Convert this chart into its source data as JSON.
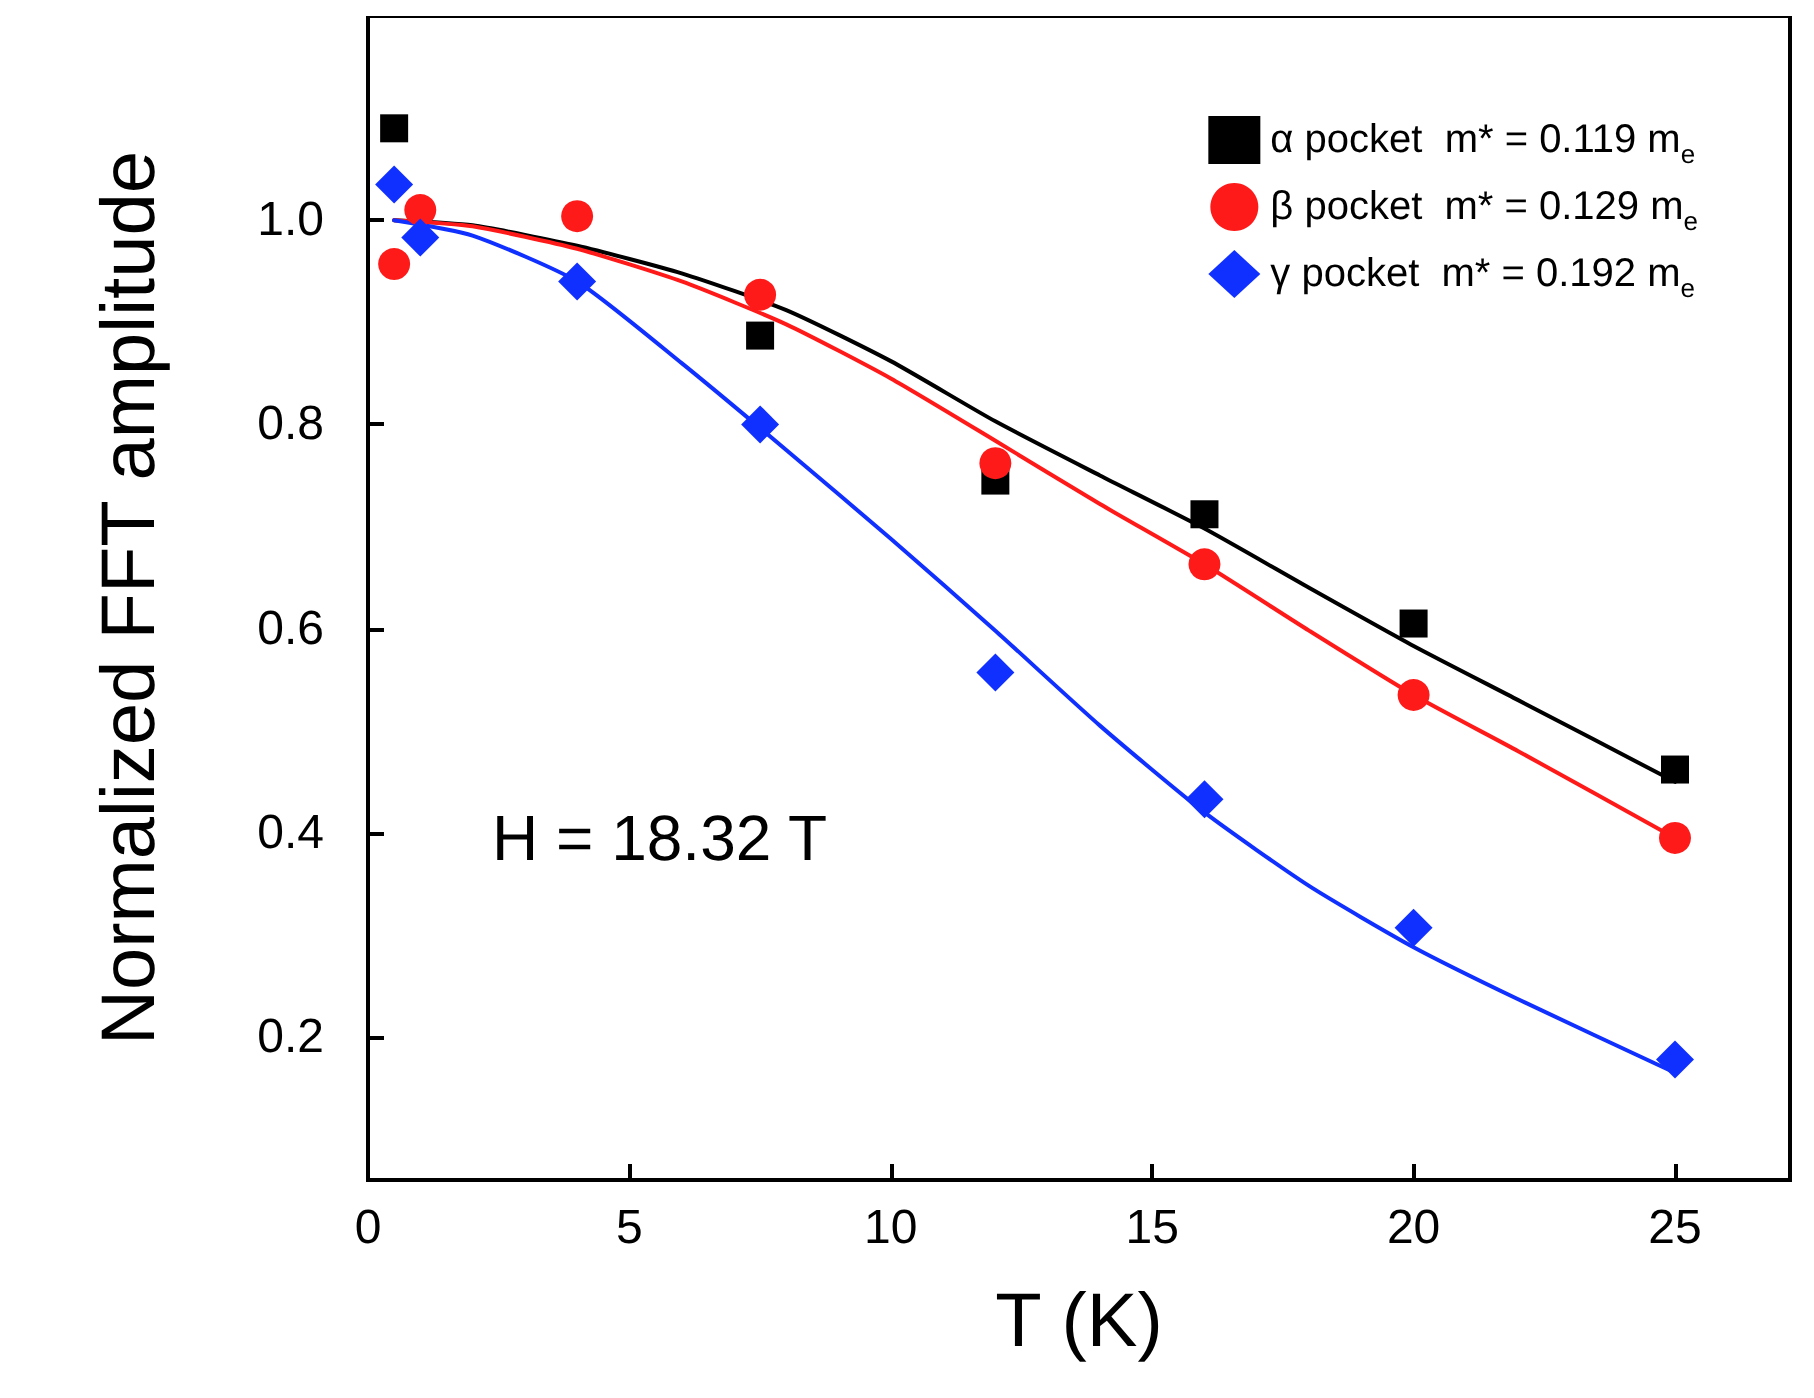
{
  "chart_data": {
    "type": "scatter",
    "xlabel": "T (K)",
    "ylabel": "Normalized FFT amplitude",
    "xlim": [
      0,
      27.2
    ],
    "xticks": [
      0,
      5,
      10,
      15,
      20,
      25
    ],
    "ylim": [
      0.06,
      1.2
    ],
    "yticks": [
      0.2,
      0.4,
      0.6,
      0.8,
      {
        "value": 1,
        "label": "1.0"
      }
    ],
    "x": [
      0.5,
      1,
      4,
      7.5,
      12,
      16,
      20,
      25
    ],
    "series": [
      {
        "name": "α pocket  m* = 0.119 m$_{e}$",
        "color": "#000000",
        "marker": "square",
        "values": [
          1.09,
          null,
          null,
          0.887,
          0.745,
          0.712,
          0.605,
          0.462
        ]
      },
      {
        "name": "β pocket  m* = 0.129 m$_{e}$",
        "color": "#ff1a1a",
        "marker": "circle",
        "values": [
          0.957,
          1.01,
          1.004,
          0.927,
          0.762,
          0.663,
          0.535,
          0.395
        ]
      },
      {
        "name": "γ pocket  m* = 0.192 m$_{e}$",
        "color": "#1030ff",
        "marker": "diamond",
        "values": [
          1.035,
          0.983,
          0.94,
          0.8,
          0.557,
          0.433,
          0.307,
          0.178
        ]
      },
      {
        "type": "line",
        "color": "#000000",
        "x": [
          0.5,
          2,
          4,
          6,
          8,
          10,
          12,
          14,
          16,
          18,
          20,
          22,
          25
        ],
        "values": [
          1.0,
          0.995,
          0.975,
          0.948,
          0.912,
          0.862,
          0.803,
          0.75,
          0.698,
          0.64,
          0.583,
          0.53,
          0.45
        ]
      },
      {
        "type": "line",
        "color": "#ff1a1a",
        "x": [
          0.5,
          2,
          4,
          6,
          8,
          10,
          12,
          14,
          16,
          18,
          20,
          22,
          25
        ],
        "values": [
          1.0,
          0.994,
          0.972,
          0.94,
          0.898,
          0.845,
          0.784,
          0.722,
          0.663,
          0.598,
          0.535,
          0.48,
          0.395
        ]
      },
      {
        "type": "line",
        "color": "#1030ff",
        "x": [
          0.5,
          2,
          4,
          6,
          8,
          10,
          12,
          14,
          16,
          18,
          20,
          22,
          25
        ],
        "values": [
          1.0,
          0.985,
          0.94,
          0.86,
          0.775,
          0.688,
          0.598,
          0.505,
          0.42,
          0.348,
          0.288,
          0.237,
          0.165
        ]
      }
    ],
    "legend": "top right",
    "grid": false,
    "annotations": [
      "H = 18.32 T"
    ]
  }
}
